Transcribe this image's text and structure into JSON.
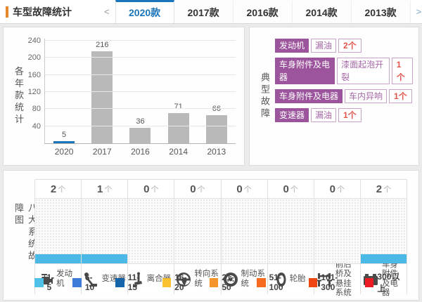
{
  "header": {
    "title": "车型故障统计",
    "accent_color": "#e8882c"
  },
  "tabs": {
    "prev_arrow": "<",
    "next_arrow": ">",
    "items": [
      {
        "label": "2020款",
        "active": true
      },
      {
        "label": "2017款",
        "active": false
      },
      {
        "label": "2016款",
        "active": false
      },
      {
        "label": "2014款",
        "active": false
      },
      {
        "label": "2013款",
        "active": false
      }
    ],
    "active_color": "#1b75bb"
  },
  "chart_panel": {
    "axis_title": "各年款统计"
  },
  "chart_data": {
    "type": "bar",
    "categories": [
      "2020",
      "2017",
      "2016",
      "2014",
      "2013"
    ],
    "values": [
      5,
      216,
      36,
      71,
      66
    ],
    "bar_colors": [
      "#1b75bb",
      "#b9b9b9",
      "#b9b9b9",
      "#b9b9b9",
      "#b9b9b9"
    ],
    "title": "",
    "xlabel": "",
    "ylabel": "各年款统计",
    "ylim": [
      0,
      250
    ],
    "yticks": [
      40,
      80,
      120,
      160,
      200,
      240
    ],
    "grid": true,
    "value_labels": true,
    "legend_position": "none"
  },
  "typical_faults": {
    "panel_title": "典型故障",
    "badge_color": "#9c559c",
    "issue_color": "#a668a6",
    "count_color": "#e2574c",
    "items": [
      {
        "category": "发动机",
        "issue": "漏油",
        "count": "2个"
      },
      {
        "category": "车身附件及电器",
        "issue": "漆面起泡开裂",
        "count": "1个"
      },
      {
        "category": "车身附件及电器",
        "issue": "车内异响",
        "count": "1个"
      },
      {
        "category": "变速器",
        "issue": "漏油",
        "count": "1个"
      }
    ]
  },
  "systems_panel": {
    "panel_title": "八大系统故障图",
    "count_suffix": "个",
    "systems": [
      {
        "name": "发动机",
        "lines": [
          "发动机"
        ],
        "count": 2,
        "icon": "engine-icon",
        "bar_color": "#4ab9e8"
      },
      {
        "name": "变速器",
        "lines": [
          "变速器"
        ],
        "count": 1,
        "icon": "gearshift-icon",
        "bar_color": "#4ab9e8"
      },
      {
        "name": "离合器",
        "lines": [
          "离合器"
        ],
        "count": 0,
        "icon": "clutch-icon",
        "bar_color": null
      },
      {
        "name": "转向系统",
        "lines": [
          "转向系统"
        ],
        "count": 0,
        "icon": "steering-wheel-icon",
        "bar_color": null
      },
      {
        "name": "制动系统",
        "lines": [
          "制动系统"
        ],
        "count": 0,
        "icon": "brake-disc-icon",
        "bar_color": null
      },
      {
        "name": "轮胎",
        "lines": [
          "轮胎"
        ],
        "count": 0,
        "icon": "tire-icon",
        "bar_color": null
      },
      {
        "name": "前后桥及悬挂系统",
        "lines": [
          "前后桥及",
          "悬挂系统"
        ],
        "count": 0,
        "icon": "axle-suspension-icon",
        "bar_color": null
      },
      {
        "name": "车身附件及电器",
        "lines": [
          "车身附件",
          "及电器"
        ],
        "count": 2,
        "icon": "battery-icon",
        "bar_color": "#4ab9e8"
      }
    ],
    "legend": [
      {
        "label": "1-5",
        "color": "#4fc1e9"
      },
      {
        "label": "6-10",
        "color": "#3b7dd8"
      },
      {
        "label": "11-15",
        "color": "#1563a8"
      },
      {
        "label": "16-20",
        "color": "#fcc12e"
      },
      {
        "label": "21-50",
        "color": "#f7942c"
      },
      {
        "label": "51-100",
        "color": "#f76b1f"
      },
      {
        "label": "101-300",
        "color": "#ee4613"
      },
      {
        "label": "300以上",
        "color": "#ea1c21"
      }
    ]
  }
}
